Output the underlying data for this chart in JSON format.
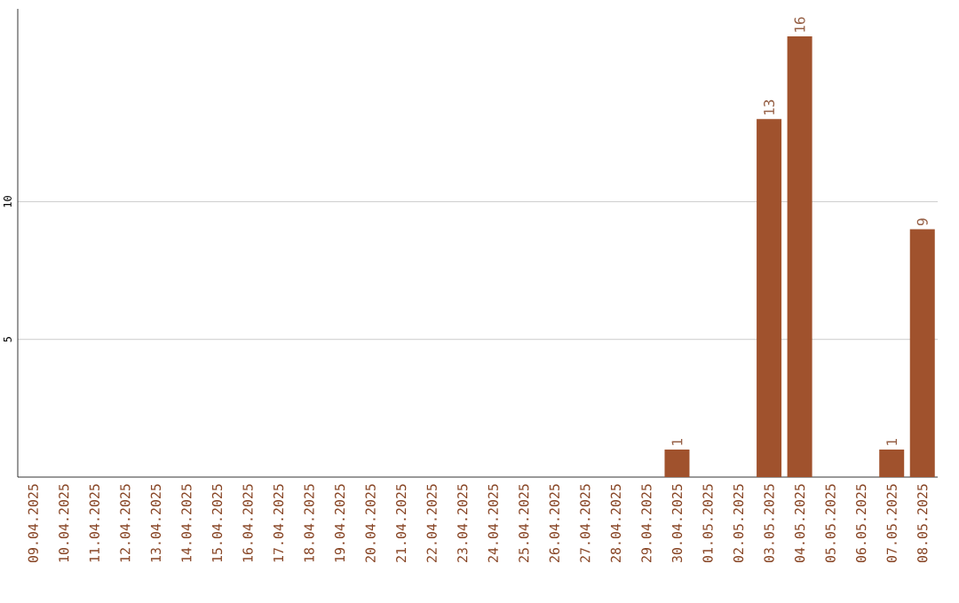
{
  "chart_data": {
    "type": "bar",
    "categories": [
      "09.04.2025",
      "10.04.2025",
      "11.04.2025",
      "12.04.2025",
      "13.04.2025",
      "14.04.2025",
      "15.04.2025",
      "16.04.2025",
      "17.04.2025",
      "18.04.2025",
      "19.04.2025",
      "20.04.2025",
      "21.04.2025",
      "22.04.2025",
      "23.04.2025",
      "24.04.2025",
      "25.04.2025",
      "26.04.2025",
      "27.04.2025",
      "28.04.2025",
      "29.04.2025",
      "30.04.2025",
      "01.05.2025",
      "02.05.2025",
      "03.05.2025",
      "04.05.2025",
      "05.05.2025",
      "06.05.2025",
      "07.05.2025",
      "08.05.2025"
    ],
    "values": [
      0,
      0,
      0,
      0,
      0,
      0,
      0,
      0,
      0,
      0,
      0,
      0,
      0,
      0,
      0,
      0,
      0,
      0,
      0,
      0,
      0,
      1,
      0,
      0,
      13,
      16,
      0,
      0,
      1,
      9
    ],
    "value_labels": [
      null,
      null,
      null,
      null,
      null,
      null,
      null,
      null,
      null,
      null,
      null,
      null,
      null,
      null,
      null,
      null,
      null,
      null,
      null,
      null,
      null,
      "1",
      null,
      null,
      "13",
      "16",
      null,
      null,
      "1",
      "9"
    ],
    "color": "#a0522d",
    "ylim": [
      0,
      17
    ],
    "yticks": [
      5,
      10
    ],
    "grid": "y"
  }
}
